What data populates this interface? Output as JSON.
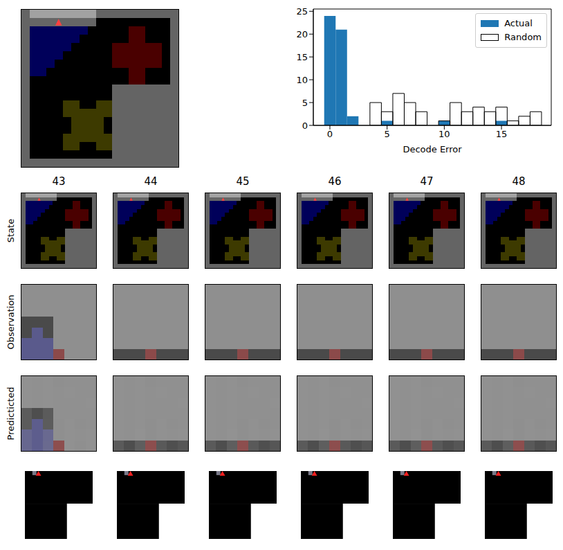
{
  "chart_data": {
    "type": "histogram",
    "xlabel": "Decode Error",
    "bins": [
      -0.5,
      0.5,
      1.5,
      2.5,
      3.5,
      4.5,
      5.5,
      6.5,
      7.5,
      8.5,
      9.5,
      10.5,
      11.5,
      12.5,
      13.5,
      14.5,
      15.5,
      16.5,
      17.5,
      18.5
    ],
    "series": [
      {
        "name": "Actual",
        "color": "#1f77b4",
        "values": [
          24,
          21,
          2,
          0,
          0,
          1,
          0,
          0,
          0,
          0,
          1,
          0,
          0,
          0,
          0,
          1,
          0,
          0,
          0
        ]
      },
      {
        "name": "Random",
        "color": "#000000",
        "values": [
          0,
          0,
          0,
          0,
          5,
          3,
          7,
          5,
          3,
          0,
          1,
          5,
          3,
          4,
          3,
          4,
          1,
          2,
          3
        ]
      }
    ],
    "xlim": [
      -1.45,
      19.35
    ],
    "ylim": [
      0,
      25.5
    ],
    "xticks": [
      0,
      5,
      10,
      15
    ],
    "yticks": [
      0,
      5,
      10,
      15,
      20,
      25
    ],
    "legend": "upper right"
  },
  "frames": {
    "titles": [
      43,
      44,
      45,
      46,
      47,
      48
    ],
    "row_labels": [
      "State",
      "Observation",
      "Predicticted"
    ]
  }
}
